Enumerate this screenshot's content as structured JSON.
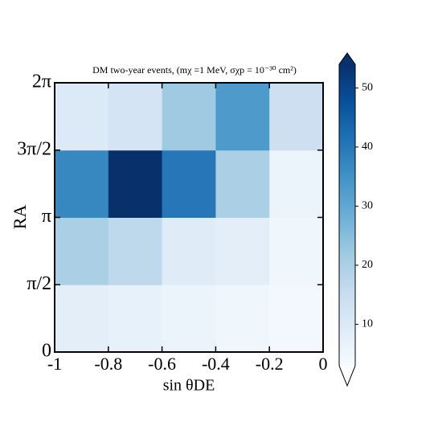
{
  "chart_data": {
    "type": "heatmap",
    "title": "DM two-year events, (mχ =1 MeV, σχp = 10⁻³⁰ cm²)",
    "x_label": "sin θDE",
    "y_label": "RA",
    "x_bins": [
      -1,
      -0.8,
      -0.6,
      -0.4,
      -0.2,
      0
    ],
    "y_bins": [
      0,
      1.5708,
      3.1416,
      4.7124,
      6.2832
    ],
    "z": [
      [
        8,
        7,
        6,
        5,
        4
      ],
      [
        20,
        17,
        9,
        8,
        5
      ],
      [
        37,
        54,
        40,
        20,
        6
      ],
      [
        10,
        12,
        22,
        33,
        14
      ]
    ],
    "xlim": [
      -1,
      0
    ],
    "xticks": [
      -1,
      -0.8,
      -0.6,
      -0.4,
      -0.2,
      0
    ],
    "ylim": [
      0,
      6.2832
    ],
    "yticks": [
      0,
      {
        "value": 1.5708,
        "label": "π/2"
      },
      {
        "value": 3.1416,
        "label": "π"
      },
      {
        "value": 4.7124,
        "label": "3π/2"
      },
      {
        "value": 6.2832,
        "label": "2π"
      }
    ],
    "colormap": [
      "#f7fbff",
      "#deebf7",
      "#c6dbef",
      "#9ecae1",
      "#6baed6",
      "#4292c6",
      "#2171b5",
      "#08519c",
      "#08306b"
    ],
    "clim": [
      3,
      54
    ],
    "cticks": [
      10,
      20,
      30,
      40,
      50
    ]
  }
}
